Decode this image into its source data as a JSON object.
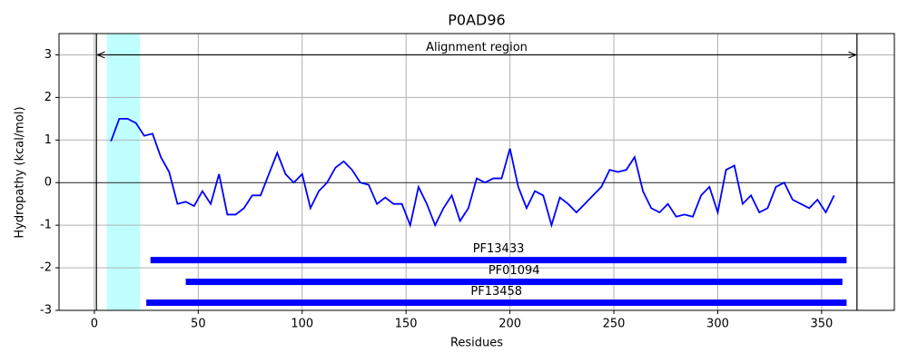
{
  "chart_data": {
    "type": "line",
    "title": "P0AD96",
    "x_label": "Residues",
    "y_label": "Hydropathy (kcal/mol)",
    "xlim": [
      -17,
      385
    ],
    "ylim": [
      -3,
      3.5
    ],
    "xticks": [
      0,
      50,
      100,
      150,
      200,
      250,
      300,
      350
    ],
    "yticks": [
      -3,
      -2,
      -1,
      0,
      1,
      2,
      3
    ],
    "grid": true,
    "color": "#0000ff",
    "x": [
      8,
      12,
      16,
      20,
      24,
      28,
      32,
      36,
      40,
      44,
      48,
      52,
      56,
      60,
      64,
      68,
      72,
      76,
      80,
      84,
      88,
      92,
      96,
      100,
      104,
      108,
      112,
      116,
      120,
      124,
      128,
      132,
      136,
      140,
      144,
      148,
      152,
      156,
      160,
      164,
      168,
      172,
      176,
      180,
      184,
      188,
      192,
      196,
      200,
      204,
      208,
      212,
      216,
      220,
      224,
      228,
      232,
      236,
      240,
      244,
      248,
      252,
      256,
      260,
      264,
      268,
      272,
      276,
      280,
      284,
      288,
      292,
      296,
      300,
      304,
      308,
      312,
      316,
      320,
      324,
      328,
      332,
      336,
      340,
      344,
      348,
      352,
      356
    ],
    "values": [
      0.97,
      1.5,
      1.5,
      1.4,
      1.1,
      1.15,
      0.6,
      0.25,
      -0.5,
      -0.45,
      -0.55,
      -0.2,
      -0.5,
      0.2,
      -0.75,
      -0.75,
      -0.6,
      -0.3,
      -0.3,
      0.2,
      0.7,
      0.2,
      0.0,
      0.2,
      -0.6,
      -0.2,
      0.0,
      0.35,
      0.5,
      0.3,
      0.0,
      -0.05,
      -0.5,
      -0.35,
      -0.5,
      -0.5,
      -1.0,
      -0.1,
      -0.5,
      -1.0,
      -0.6,
      -0.3,
      -0.9,
      -0.6,
      0.1,
      0.0,
      0.1,
      0.1,
      0.8,
      -0.1,
      -0.6,
      -0.2,
      -0.3,
      -1.0,
      -0.35,
      -0.5,
      -0.7,
      -0.5,
      -0.3,
      -0.1,
      0.3,
      0.25,
      0.3,
      0.6,
      -0.2,
      -0.6,
      -0.7,
      -0.5,
      -0.8,
      -0.75,
      -0.8,
      -0.3,
      -0.1,
      -0.7,
      0.3,
      0.4,
      -0.5,
      -0.3,
      -0.7,
      -0.6,
      -0.1,
      0.0,
      -0.4,
      -0.5,
      -0.6,
      -0.4,
      -0.7,
      -0.3
    ],
    "highlight": {
      "start": 6,
      "end": 22,
      "color": "#c0ffff"
    },
    "alignment": {
      "label": "Alignment region",
      "start": 1,
      "end": 367,
      "y": 3
    },
    "domains": [
      {
        "name": "PF13433",
        "start": 27,
        "end": 362,
        "y": -1.82,
        "color": "#0000ff"
      },
      {
        "name": "PF01094",
        "start": 44,
        "end": 360,
        "y": -2.33,
        "color": "#0000ff"
      },
      {
        "name": "PF13458",
        "start": 25,
        "end": 362,
        "y": -2.82,
        "color": "#0000ff"
      }
    ]
  }
}
